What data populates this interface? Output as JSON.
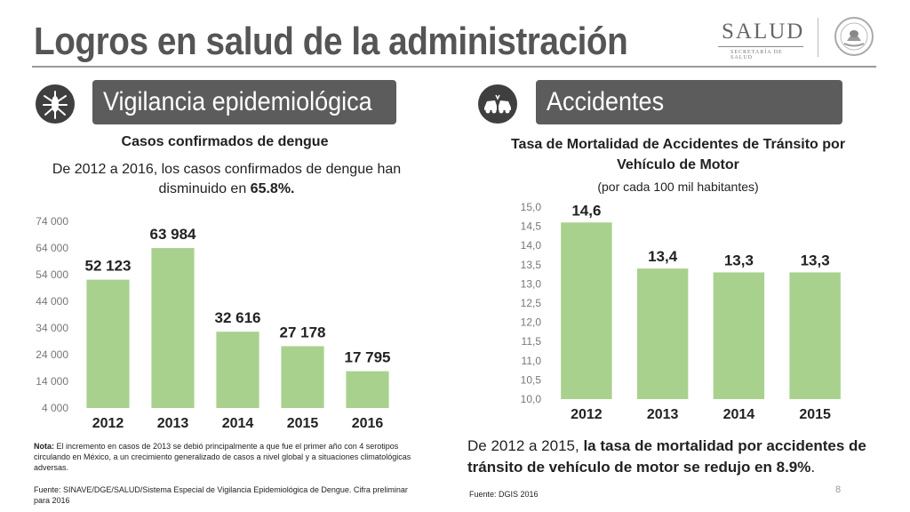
{
  "title": "Logros en salud de la administración",
  "logo": {
    "name": "SALUD",
    "subtitle": "SECRETARÍA DE SALUD"
  },
  "left_section": {
    "header": "Vigilancia epidemiológica",
    "icon": "mosquito-icon",
    "chart_title": "Casos confirmados de dengue",
    "summary_prefix": "De 2012 a 2016, los casos confirmados de dengue han disminuido en ",
    "summary_highlight": "65.8%.",
    "note_label": "Nota:",
    "note_text": " El incremento en casos de 2013 se debió principalmente a que fue el primer año con 4 serotipos circulando en México, a un crecimiento generalizado de casos a nivel global y a situaciones climatológicas adversas.",
    "source": "Fuente: SINAVE/DGE/SALUD/Sistema Especial de Vigilancia Epidemiológica de Dengue. Cifra preliminar para 2016"
  },
  "right_section": {
    "header": "Accidentes",
    "icon": "car-crash-icon",
    "chart_title_line1": "Tasa de Mortalidad de Accidentes de Tránsito por",
    "chart_title_line2": "Vehículo de Motor",
    "chart_subtitle": "(por cada 100 mil habitantes)",
    "summary_prefix": "De 2012 a 2015, ",
    "summary_highlight": "la tasa de mortalidad por accidentes de tránsito de vehículo de motor se redujo en 8.9%",
    "summary_suffix": ".",
    "source": "Fuente: DGIS 2016"
  },
  "page_number": "8",
  "colors": {
    "bar": "#a9d18e",
    "header_bg": "#5c5c5c",
    "icon_bg": "#3f3f3f",
    "title": "#555555"
  },
  "chart_data": [
    {
      "type": "bar",
      "title": "Casos confirmados de dengue",
      "categories": [
        "2012",
        "2013",
        "2014",
        "2015",
        "2016"
      ],
      "values": [
        52123,
        63984,
        32616,
        27178,
        17795
      ],
      "value_labels": [
        "52 123",
        "63 984",
        "32 616",
        "27 178",
        "17 795"
      ],
      "yticks": [
        "4 000",
        "14 000",
        "24 000",
        "34 000",
        "44 000",
        "54 000",
        "64 000",
        "74 000"
      ],
      "ylim": [
        4000,
        74000
      ],
      "grid": false
    },
    {
      "type": "bar",
      "title": "Tasa de Mortalidad de Accidentes de Tránsito por Vehículo de Motor",
      "categories": [
        "2012",
        "2013",
        "2014",
        "2015"
      ],
      "values": [
        14.6,
        13.4,
        13.3,
        13.3
      ],
      "value_labels": [
        "14,6",
        "13,4",
        "13,3",
        "13,3"
      ],
      "yticks": [
        "10,0",
        "10,5",
        "11,0",
        "11,5",
        "12,0",
        "12,5",
        "13,0",
        "13,5",
        "14,0",
        "14,5",
        "15,0"
      ],
      "ylim": [
        10.0,
        15.0
      ],
      "grid": false
    }
  ]
}
